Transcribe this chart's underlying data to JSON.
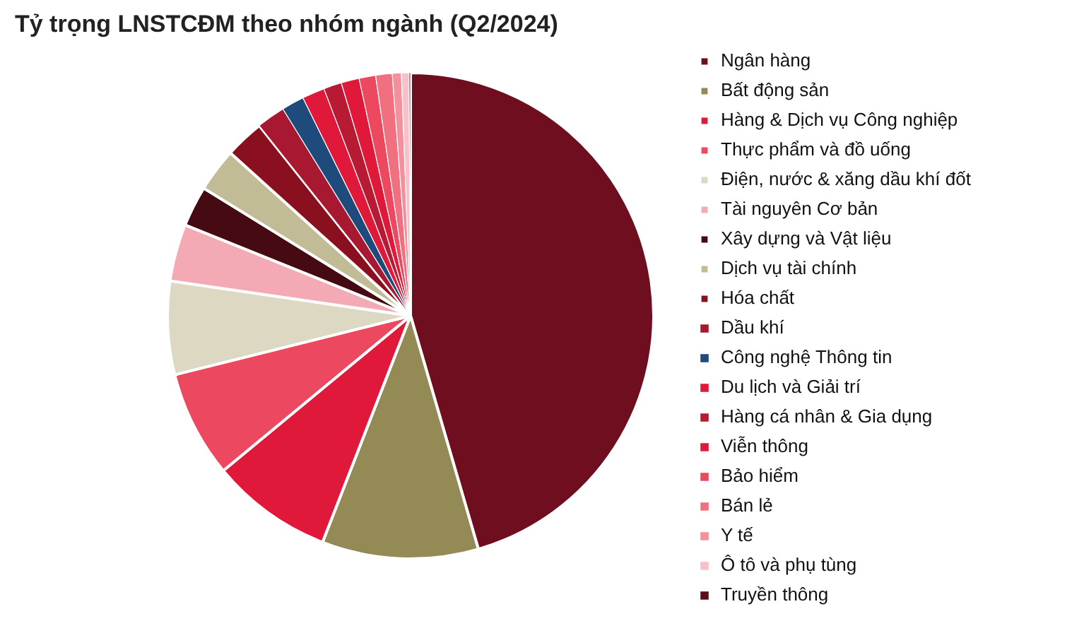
{
  "chart_data": {
    "type": "pie",
    "title": "Tỷ trọng LNSTCĐM theo nhóm ngành (Q2/2024)",
    "categories": [
      "Ngân hàng",
      "Bất động sản",
      "Hàng & Dịch vụ Công nghiệp",
      "Thực phẩm và đồ uống",
      "Điện, nước & xăng dầu khí đốt",
      "Tài nguyên Cơ bản",
      "Xây dựng và Vật liệu",
      "Dịch vụ tài chính",
      "Hóa chất",
      "Dầu khí",
      "Công nghệ Thông tin",
      "Du lịch và Giải trí",
      "Hàng cá nhân & Gia dụng",
      "Viễn thông",
      "Bảo hiểm",
      "Bán lẻ",
      "Y tế",
      "Ô tô và phụ tùng",
      "Truyền thông"
    ],
    "values": [
      45.5,
      10.4,
      8.1,
      7.1,
      6.2,
      3.8,
      2.7,
      2.9,
      2.6,
      1.9,
      1.5,
      1.5,
      1.2,
      1.2,
      1.1,
      1.1,
      0.6,
      0.5,
      0.1
    ],
    "colors": [
      "#6e0e1e",
      "#948a55",
      "#e0193a",
      "#ec4860",
      "#dcd8c2",
      "#f4aab4",
      "#450a12",
      "#c2bc96",
      "#8a1020",
      "#a81830",
      "#1e4a7c",
      "#e0193a",
      "#b81a34",
      "#e0193a",
      "#ec4860",
      "#f07080",
      "#f4909c",
      "#f8c0c8",
      "#5a0c18"
    ],
    "legend": "right"
  }
}
